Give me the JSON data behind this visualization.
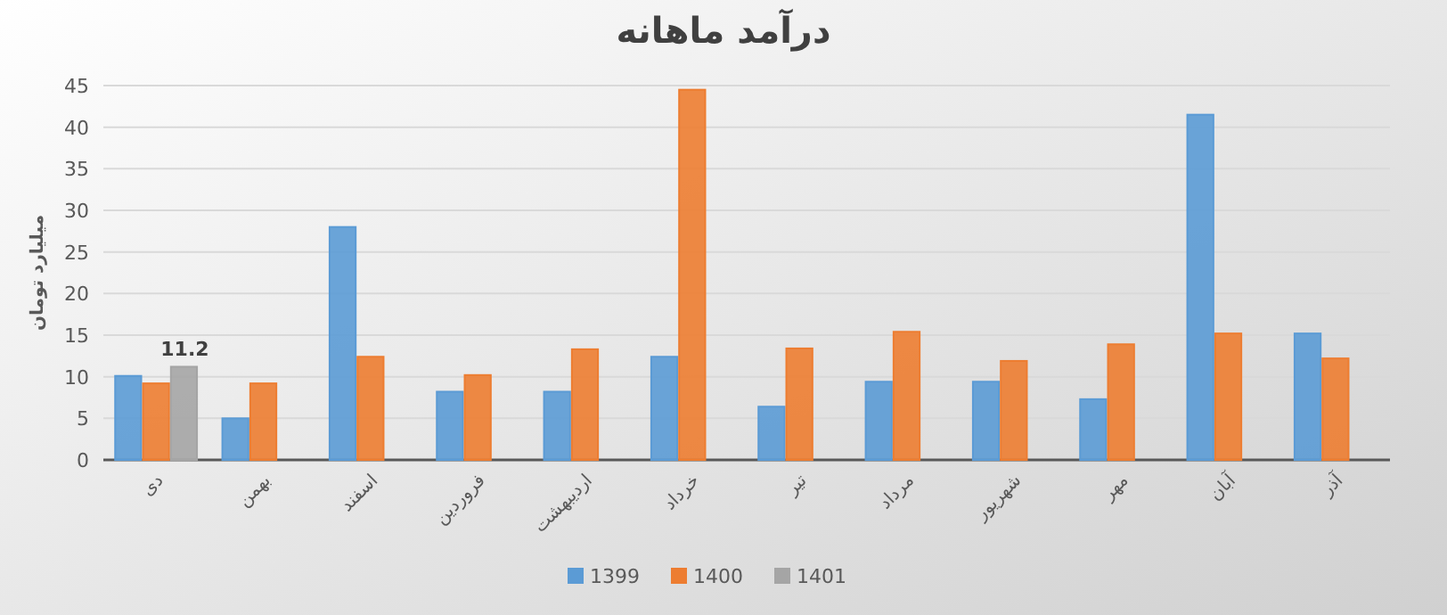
{
  "chart_data": {
    "type": "bar",
    "title": "درآمد ماهانه",
    "ylabel": "میلیارد تومان",
    "categories": [
      "دی",
      "بهمن",
      "اسفند",
      "فروردین",
      "اردیبهشت",
      "خرداد",
      "تیر",
      "مرداد",
      "شهریور",
      "مهر",
      "آبان",
      "آذر"
    ],
    "series": [
      {
        "name": "1399",
        "color": "#5b9bd5",
        "values": [
          10.1,
          5,
          28,
          8.2,
          8.2,
          12.4,
          6.4,
          9.4,
          9.4,
          7.3,
          41.5,
          15.2
        ]
      },
      {
        "name": "1400",
        "color": "#ed7d31",
        "values": [
          9.2,
          9.2,
          12.4,
          10.2,
          13.3,
          44.5,
          13.4,
          15.4,
          11.9,
          13.9,
          15.2,
          12.2
        ]
      },
      {
        "name": "1401",
        "color": "#a5a5a5",
        "values": [
          11.2,
          null,
          null,
          null,
          null,
          null,
          null,
          null,
          null,
          null,
          null,
          null
        ],
        "value_labels": [
          "11.2",
          null,
          null,
          null,
          null,
          null,
          null,
          null,
          null,
          null,
          null,
          null
        ]
      }
    ],
    "ylim": [
      0,
      45
    ],
    "yticks": [
      0,
      5,
      10,
      15,
      20,
      25,
      30,
      35,
      40,
      45
    ],
    "grid": "y",
    "legend": "bottom"
  }
}
